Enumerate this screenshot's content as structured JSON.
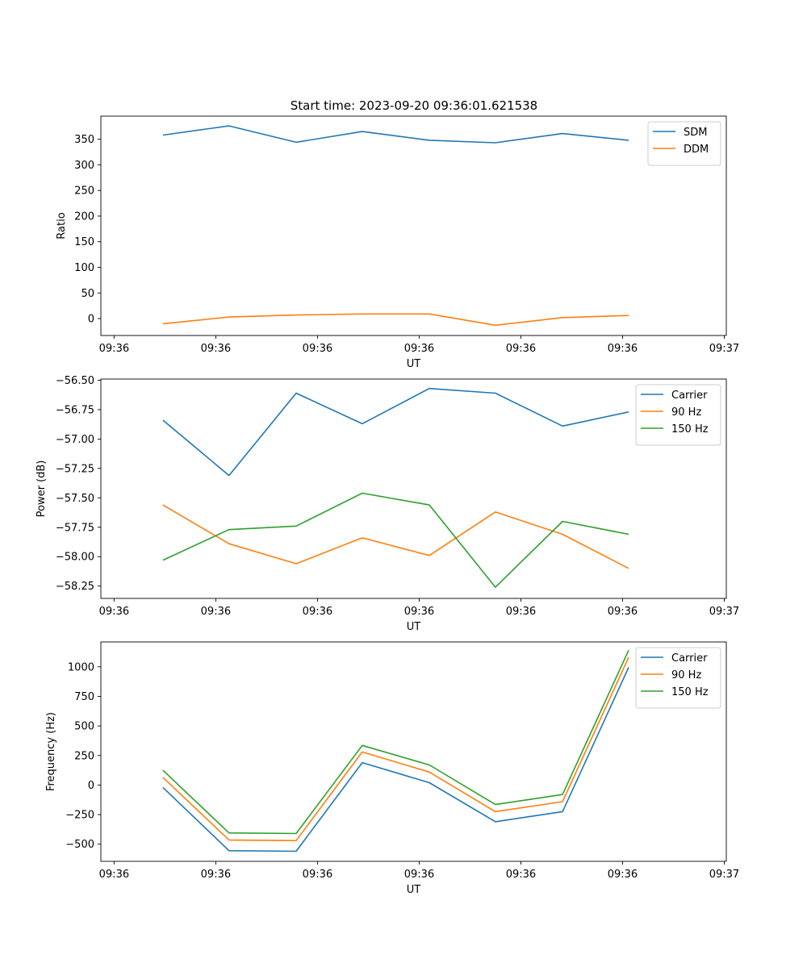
{
  "title": "Start time: 2023-09-20 09:36:01.621538",
  "colors": {
    "blue": "#1f77b4",
    "orange": "#ff7f0e",
    "green": "#2ca02c"
  },
  "chart_data": [
    {
      "type": "line",
      "title": "Start time: 2023-09-20 09:36:01.621538",
      "xlabel": "UT",
      "ylabel": "Ratio",
      "x_ticks": [
        "09:36",
        "09:36",
        "09:36",
        "09:36",
        "09:36",
        "09:36",
        "09:37"
      ],
      "x_tick_pos": [
        0,
        1,
        2,
        3,
        4,
        5,
        6
      ],
      "x": [
        0.48,
        1.13,
        1.79,
        2.44,
        3.1,
        3.75,
        4.41,
        5.06
      ],
      "xlim": [
        -0.13,
        6.02
      ],
      "ylim": [
        -33,
        395
      ],
      "y_ticks": [
        0,
        50,
        100,
        150,
        200,
        250,
        300,
        350
      ],
      "y_tick_labels": [
        "0",
        "50",
        "100",
        "150",
        "200",
        "250",
        "300",
        "350"
      ],
      "legend": "top-right",
      "series": [
        {
          "name": "SDM",
          "color": "#1f77b4",
          "values": [
            358,
            376,
            344,
            365,
            348,
            343,
            361,
            348
          ]
        },
        {
          "name": "DDM",
          "color": "#ff7f0e",
          "values": [
            -10,
            3,
            7,
            9,
            9,
            -13,
            2,
            6
          ]
        }
      ]
    },
    {
      "type": "line",
      "xlabel": "UT",
      "ylabel": "Power (dB)",
      "x_ticks": [
        "09:36",
        "09:36",
        "09:36",
        "09:36",
        "09:36",
        "09:36",
        "09:37"
      ],
      "x_tick_pos": [
        0,
        1,
        2,
        3,
        4,
        5,
        6
      ],
      "x": [
        0.48,
        1.13,
        1.79,
        2.44,
        3.1,
        3.75,
        4.41,
        5.06
      ],
      "xlim": [
        -0.13,
        6.02
      ],
      "ylim": [
        -58.355,
        -56.49
      ],
      "y_ticks": [
        -58.25,
        -58.0,
        -57.75,
        -57.5,
        -57.25,
        -57.0,
        -56.75,
        -56.5
      ],
      "y_tick_labels": [
        "−58.25",
        "−58.00",
        "−57.75",
        "−57.50",
        "−57.25",
        "−57.00",
        "−56.75",
        "−56.50"
      ],
      "legend": "top-right",
      "series": [
        {
          "name": "Carrier",
          "color": "#1f77b4",
          "values": [
            -56.84,
            -57.31,
            -56.61,
            -56.87,
            -56.57,
            -56.61,
            -56.89,
            -56.77
          ]
        },
        {
          "name": "90 Hz",
          "color": "#ff7f0e",
          "values": [
            -57.56,
            -57.89,
            -58.06,
            -57.84,
            -57.99,
            -57.62,
            -57.81,
            -58.1
          ]
        },
        {
          "name": "150 Hz",
          "color": "#2ca02c",
          "values": [
            -58.03,
            -57.77,
            -57.74,
            -57.46,
            -57.56,
            -58.26,
            -57.7,
            -57.81
          ]
        }
      ]
    },
    {
      "type": "line",
      "xlabel": "UT",
      "ylabel": "Frequency (Hz)",
      "x_ticks": [
        "09:36",
        "09:36",
        "09:36",
        "09:36",
        "09:36",
        "09:36",
        "09:37"
      ],
      "x_tick_pos": [
        0,
        1,
        2,
        3,
        4,
        5,
        6
      ],
      "x": [
        0.48,
        1.13,
        1.79,
        2.44,
        3.1,
        3.75,
        4.41,
        5.06
      ],
      "xlim": [
        -0.13,
        6.02
      ],
      "ylim": [
        -645,
        1210
      ],
      "y_ticks": [
        -500,
        -250,
        0,
        250,
        500,
        750,
        1000
      ],
      "y_tick_labels": [
        "−500",
        "−250",
        "0",
        "250",
        "500",
        "750",
        "1000"
      ],
      "legend": "top-right",
      "series": [
        {
          "name": "Carrier",
          "color": "#1f77b4",
          "values": [
            -20,
            -555,
            -560,
            190,
            20,
            -310,
            -225,
            995
          ]
        },
        {
          "name": "90 Hz",
          "color": "#ff7f0e",
          "values": [
            65,
            -465,
            -470,
            280,
            110,
            -225,
            -140,
            1080
          ]
        },
        {
          "name": "150 Hz",
          "color": "#2ca02c",
          "values": [
            125,
            -405,
            -410,
            335,
            170,
            -165,
            -80,
            1140
          ]
        }
      ]
    }
  ]
}
